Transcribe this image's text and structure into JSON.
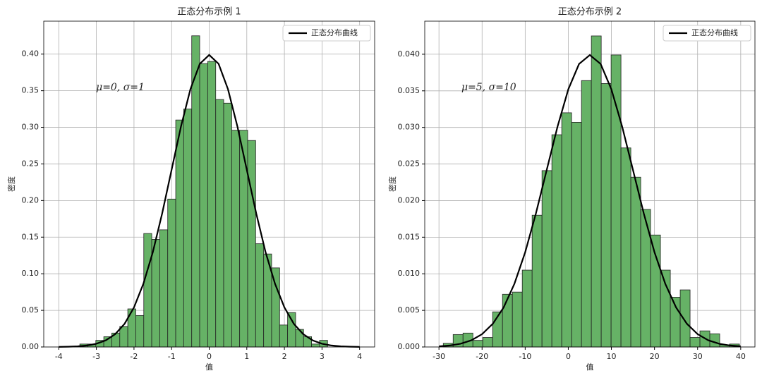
{
  "chart_data": [
    {
      "type": "histogram",
      "title": "正态分布示例 1",
      "xlabel": "值",
      "ylabel": "密度",
      "annotation": "μ=0, σ=1",
      "bins": [
        -3.44,
        -3.228,
        -3.015,
        -2.803,
        -2.59,
        -2.378,
        -2.165,
        -1.953,
        -1.74,
        -1.528,
        -1.315,
        -1.103,
        -0.89,
        -0.678,
        -0.465,
        -0.253,
        -0.04,
        0.173,
        0.385,
        0.598,
        0.81,
        1.023,
        1.235,
        1.448,
        1.66,
        1.873,
        2.085,
        2.298,
        2.51,
        2.723,
        2.935,
        3.148
      ],
      "values": [
        0.004,
        0.004,
        0.009,
        0.014,
        0.019,
        0.028,
        0.052,
        0.043,
        0.155,
        0.147,
        0.16,
        0.202,
        0.31,
        0.325,
        0.425,
        0.387,
        0.39,
        0.338,
        0.333,
        0.296,
        0.296,
        0.282,
        0.141,
        0.127,
        0.108,
        0.03,
        0.047,
        0.024,
        0.014,
        0.004,
        0.009
      ],
      "color": "#66b266",
      "line": {
        "name": "正态分布曲线",
        "color": "#000000",
        "x": [
          -4,
          -3.75,
          -3.5,
          -3.25,
          -3,
          -2.75,
          -2.5,
          -2.25,
          -2,
          -1.75,
          -1.5,
          -1.25,
          -1,
          -0.75,
          -0.5,
          -0.25,
          0,
          0.25,
          0.5,
          0.75,
          1,
          1.25,
          1.5,
          1.75,
          2,
          2.25,
          2.5,
          2.75,
          3,
          3.25,
          3.5,
          3.75,
          4
        ],
        "values": [
          0.0001,
          0.0004,
          0.0009,
          0.002,
          0.0044,
          0.0091,
          0.0175,
          0.0317,
          0.054,
          0.0863,
          0.1295,
          0.1826,
          0.242,
          0.3011,
          0.3521,
          0.3867,
          0.3989,
          0.3867,
          0.3521,
          0.3011,
          0.242,
          0.1826,
          0.1295,
          0.0863,
          0.054,
          0.0317,
          0.0175,
          0.0091,
          0.0044,
          0.002,
          0.0009,
          0.0004,
          0.0001
        ]
      },
      "xlim": [
        -4.4,
        4.4
      ],
      "ylim": [
        0,
        0.445
      ],
      "xticks": [
        -4,
        -3,
        -2,
        -1,
        0,
        1,
        2,
        3,
        4
      ],
      "yticks": [
        {
          "value": 0,
          "label": "0.00"
        },
        {
          "value": 0.05,
          "label": "0.05"
        },
        {
          "value": 0.1,
          "label": "0.10"
        },
        {
          "value": 0.15,
          "label": "0.15"
        },
        {
          "value": 0.2,
          "label": "0.20"
        },
        {
          "value": 0.25,
          "label": "0.25"
        },
        {
          "value": 0.3,
          "label": "0.30"
        },
        {
          "value": 0.35,
          "label": "0.35"
        },
        {
          "value": 0.4,
          "label": "0.40"
        }
      ],
      "grid": true,
      "legend": "upper right"
    },
    {
      "type": "histogram",
      "title": "正态分布示例 2",
      "xlabel": "值",
      "ylabel": "密度",
      "annotation": "μ=5, σ=10",
      "bins": [
        -29,
        -26.71,
        -24.42,
        -22.13,
        -19.84,
        -17.55,
        -15.26,
        -12.97,
        -10.68,
        -8.39,
        -6.1,
        -3.81,
        -1.52,
        0.77,
        3.06,
        5.35,
        7.64,
        9.93,
        12.22,
        14.51,
        16.8,
        19.09,
        21.38,
        23.67,
        25.96,
        28.25,
        30.54,
        32.83,
        35.12,
        37.41,
        39.7
      ],
      "values": [
        0.0005,
        0.0017,
        0.0019,
        0.0009,
        0.0013,
        0.0048,
        0.0072,
        0.0075,
        0.0105,
        0.018,
        0.0241,
        0.029,
        0.032,
        0.0307,
        0.0364,
        0.0425,
        0.036,
        0.0399,
        0.0272,
        0.0232,
        0.0188,
        0.0153,
        0.0105,
        0.0068,
        0.0078,
        0.0013,
        0.0022,
        0.0018,
        0.0003,
        0.0004
      ],
      "color": "#66b266",
      "line": {
        "name": "正态分布曲线",
        "color": "#000000",
        "x": [
          -30,
          -27.5,
          -25,
          -22.5,
          -20,
          -17.5,
          -15,
          -12.5,
          -10,
          -7.5,
          -5,
          -2.5,
          0,
          2.5,
          5,
          7.5,
          10,
          12.5,
          15,
          17.5,
          20,
          22.5,
          25,
          27.5,
          30,
          32.5,
          35,
          37.5,
          40
        ],
        "values": [
          9e-05,
          0.0002,
          0.00044,
          0.00091,
          0.00175,
          0.00317,
          0.0054,
          0.00863,
          0.01295,
          0.01826,
          0.0242,
          0.03011,
          0.03521,
          0.03867,
          0.03989,
          0.03867,
          0.03521,
          0.03011,
          0.0242,
          0.01826,
          0.01295,
          0.00863,
          0.0054,
          0.00317,
          0.00175,
          0.00091,
          0.00044,
          0.0002,
          9e-05
        ]
      },
      "xlim": [
        -33.3,
        43.3
      ],
      "ylim": [
        0,
        0.04452
      ],
      "xticks": [
        -30,
        -20,
        -10,
        0,
        10,
        20,
        30,
        40
      ],
      "yticks": [
        {
          "value": 0,
          "label": "0.000"
        },
        {
          "value": 0.005,
          "label": "0.005"
        },
        {
          "value": 0.01,
          "label": "0.010"
        },
        {
          "value": 0.015,
          "label": "0.015"
        },
        {
          "value": 0.02,
          "label": "0.020"
        },
        {
          "value": 0.025,
          "label": "0.025"
        },
        {
          "value": 0.03,
          "label": "0.030"
        },
        {
          "value": 0.035,
          "label": "0.035"
        },
        {
          "value": 0.04,
          "label": "0.040"
        }
      ],
      "grid": true,
      "legend": "upper right"
    }
  ]
}
